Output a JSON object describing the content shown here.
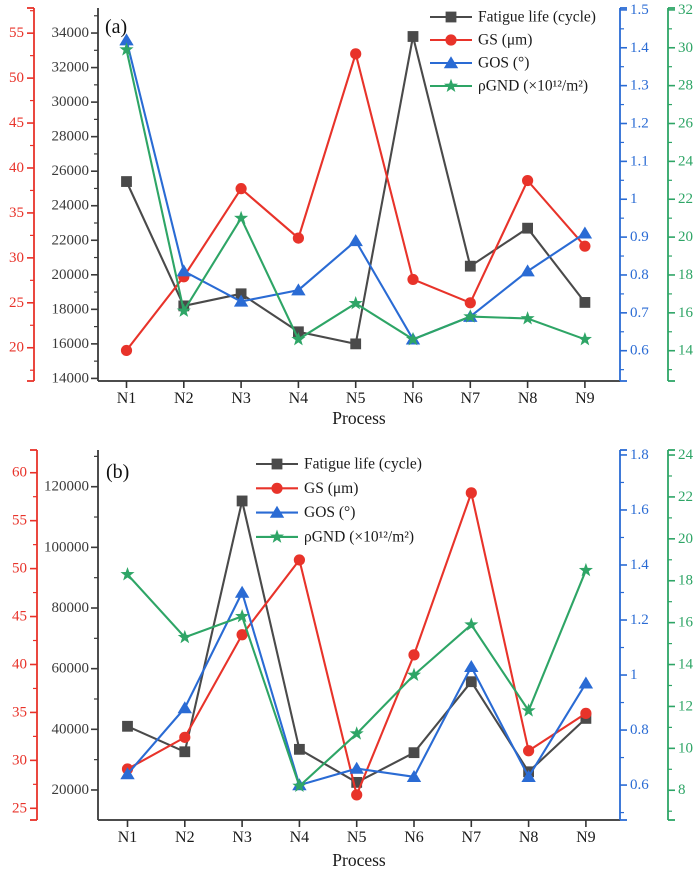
{
  "figure": {
    "background": "#ffffff"
  },
  "chart_data": [
    {
      "type": "line",
      "panel_label": "(a)",
      "xlabel": "Process",
      "categories": [
        "N1",
        "N2",
        "N3",
        "N4",
        "N5",
        "N6",
        "N7",
        "N8",
        "N9"
      ],
      "legend_position": "top-right",
      "grid": "off",
      "axes": {
        "gs": {
          "name": "GS (μm)",
          "side": "left-outer",
          "color": "#e8332a",
          "min": 16.3,
          "max": 57.8,
          "tick_values": [
            20,
            25,
            30,
            35,
            40,
            45,
            50,
            55
          ],
          "tick_labels": [
            "20",
            "25",
            "30",
            "35",
            "40",
            "45",
            "50",
            "55"
          ],
          "minor_step": 2.5
        },
        "fatigue": {
          "name": "Fatigue life (cycle)",
          "side": "left",
          "color": "#3a3a3a",
          "min": 13850,
          "max": 35450,
          "tick_values": [
            14000,
            16000,
            18000,
            20000,
            22000,
            24000,
            26000,
            28000,
            30000,
            32000,
            34000
          ],
          "tick_labels": [
            "14000",
            "16000",
            "18000",
            "20000",
            "22000",
            "24000",
            "26000",
            "28000",
            "30000",
            "32000",
            "34000"
          ],
          "minor_step": 1000
        },
        "gos": {
          "name": "GOS (°)",
          "side": "right",
          "color": "#2a6bd4",
          "min": 0.52,
          "max": 1.505,
          "tick_values": [
            0.6,
            0.7,
            0.8,
            0.9,
            1,
            1.1,
            1.2,
            1.3,
            1.4,
            1.5
          ],
          "tick_labels": [
            "0.6",
            "0.7",
            "0.8",
            "0.9",
            "1",
            "1.1",
            "1.2",
            "1.3",
            "1.4",
            "1.5"
          ],
          "minor_step": 0.05
        },
        "gnd": {
          "name": "ρGND (×10¹²/m²)",
          "side": "right-outer",
          "color": "#2ea566",
          "min": 12.4,
          "max": 32.1,
          "tick_values": [
            14,
            16,
            18,
            20,
            22,
            24,
            26,
            28,
            30,
            32
          ],
          "tick_labels": [
            "14",
            "16",
            "18",
            "20",
            "22",
            "24",
            "26",
            "28",
            "30",
            "32"
          ],
          "minor_step": 1
        }
      },
      "series": [
        {
          "name": "Fatigue life (cycle)",
          "axis": "fatigue",
          "marker": "square",
          "color": "#4a4a4a",
          "values": [
            25400,
            18200,
            18900,
            16700,
            16000,
            33800,
            20500,
            22700,
            18400
          ]
        },
        {
          "name": "GS (μm)",
          "axis": "gs",
          "marker": "circle",
          "color": "#e8332a",
          "values": [
            19.7,
            27.9,
            37.7,
            32.2,
            52.7,
            27.6,
            25,
            38.6,
            31.3
          ]
        },
        {
          "name": "GOS (°)",
          "axis": "gos",
          "marker": "triangle",
          "color": "#2a6bd4",
          "values": [
            1.42,
            0.81,
            0.73,
            0.76,
            0.89,
            0.63,
            0.69,
            0.81,
            0.91
          ]
        },
        {
          "name": "ρGND (×10¹²/m²)",
          "axis": "gnd",
          "marker": "star",
          "color": "#2ea566",
          "values": [
            29.9,
            16.1,
            21,
            14.6,
            16.5,
            14.6,
            15.8,
            15.7,
            14.6
          ]
        }
      ]
    },
    {
      "type": "line",
      "panel_label": "(b)",
      "xlabel": "Process",
      "categories": [
        "N1",
        "N2",
        "N3",
        "N4",
        "N5",
        "N6",
        "N7",
        "N8",
        "N9"
      ],
      "legend_position": "top-center",
      "grid": "off",
      "axes": {
        "gs": {
          "name": "GS (μm)",
          "side": "left-outer",
          "color": "#e8332a",
          "min": 23.78,
          "max": 62.37,
          "tick_values": [
            25,
            30,
            35,
            40,
            45,
            50,
            55,
            60
          ],
          "tick_labels": [
            "25",
            "30",
            "35",
            "40",
            "45",
            "50",
            "55",
            "60"
          ],
          "minor_step": 2.5
        },
        "fatigue": {
          "name": "Fatigue life (cycle)",
          "side": "left",
          "color": "#3a3a3a",
          "min": 10100,
          "max": 132100,
          "tick_values": [
            20000,
            40000,
            60000,
            80000,
            100000,
            120000
          ],
          "tick_labels": [
            "20000",
            "40000",
            "60000",
            "80000",
            "100000",
            "120000"
          ],
          "minor_step": 10000
        },
        "gos": {
          "name": "GOS (°)",
          "side": "right",
          "color": "#2a6bd4",
          "min": 0.473,
          "max": 1.818,
          "tick_values": [
            0.6,
            0.8,
            1,
            1.2,
            1.4,
            1.6,
            1.8
          ],
          "tick_labels": [
            "0.6",
            "0.8",
            "1",
            "1.2",
            "1.4",
            "1.6",
            "1.8"
          ],
          "minor_step": 0.1
        },
        "gnd": {
          "name": "ρGND (×10¹²/m²)",
          "side": "right-outer",
          "color": "#2ea566",
          "min": 6.58,
          "max": 24.24,
          "tick_values": [
            8,
            10,
            12,
            14,
            16,
            18,
            20,
            22,
            24
          ],
          "tick_labels": [
            "8",
            "10",
            "12",
            "14",
            "16",
            "18",
            "20",
            "22",
            "24"
          ],
          "minor_step": 1
        }
      },
      "series": [
        {
          "name": "Fatigue life (cycle)",
          "axis": "fatigue",
          "marker": "square",
          "color": "#4a4a4a",
          "values": [
            41000,
            32600,
            115300,
            33400,
            22500,
            32300,
            55700,
            26000,
            43600
          ]
        },
        {
          "name": "GS (μm)",
          "axis": "gs",
          "marker": "circle",
          "color": "#e8332a",
          "values": [
            29.1,
            32.4,
            43.1,
            50.9,
            26.4,
            41,
            57.9,
            31,
            34.9
          ]
        },
        {
          "name": "GOS (°)",
          "axis": "gos",
          "marker": "triangle",
          "color": "#2a6bd4",
          "values": [
            0.64,
            0.88,
            1.3,
            0.6,
            0.66,
            0.63,
            1.03,
            0.63,
            0.97
          ]
        },
        {
          "name": "ρGND (×10¹²/m²)",
          "axis": "gnd",
          "marker": "star",
          "color": "#2ea566",
          "values": [
            18.3,
            15.3,
            16.3,
            8.2,
            10.7,
            13.5,
            15.9,
            11.8,
            18.5
          ]
        }
      ]
    }
  ]
}
